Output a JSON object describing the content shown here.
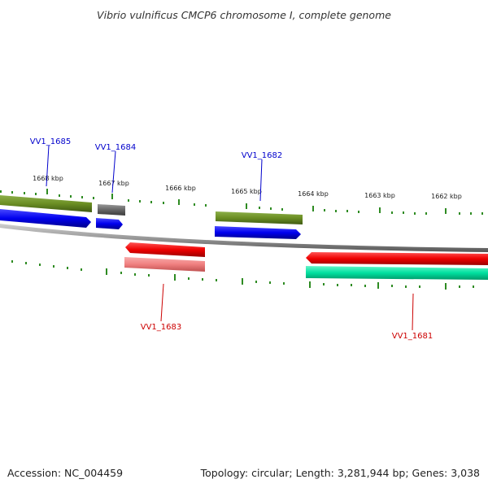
{
  "title": "Vibrio vulnificus CMCP6 chromosome I, complete genome",
  "footer": {
    "accession": "Accession: NC_004459",
    "summary": "Topology: circular; Length: 3,281,944 bp; Genes: 3,038"
  },
  "ticks": [
    "1668 kbp",
    "1667 kbp",
    "1666 kbp",
    "1665 kbp",
    "1664 kbp",
    "1663 kbp",
    "1662 kbp"
  ],
  "genes": [
    {
      "label": "VV1_1685",
      "color": "#0000cc"
    },
    {
      "label": "VV1_1684",
      "color": "#0000cc"
    },
    {
      "label": "VV1_1682",
      "color": "#0000cc"
    },
    {
      "label": "VV1_1683",
      "color": "#cc0000"
    },
    {
      "label": "VV1_1681",
      "color": "#cc0000"
    }
  ],
  "colors": {
    "forward_cds": "#0000ee",
    "forward_gene": "#6b8e23",
    "pseudo_gene": "#666666",
    "reverse_cds": "#ee0000",
    "reverse_gene_light": "#f08080",
    "reverse_gene_teal": "#00e0a0",
    "backbone": "#999999",
    "tick": "#2e8b22"
  }
}
